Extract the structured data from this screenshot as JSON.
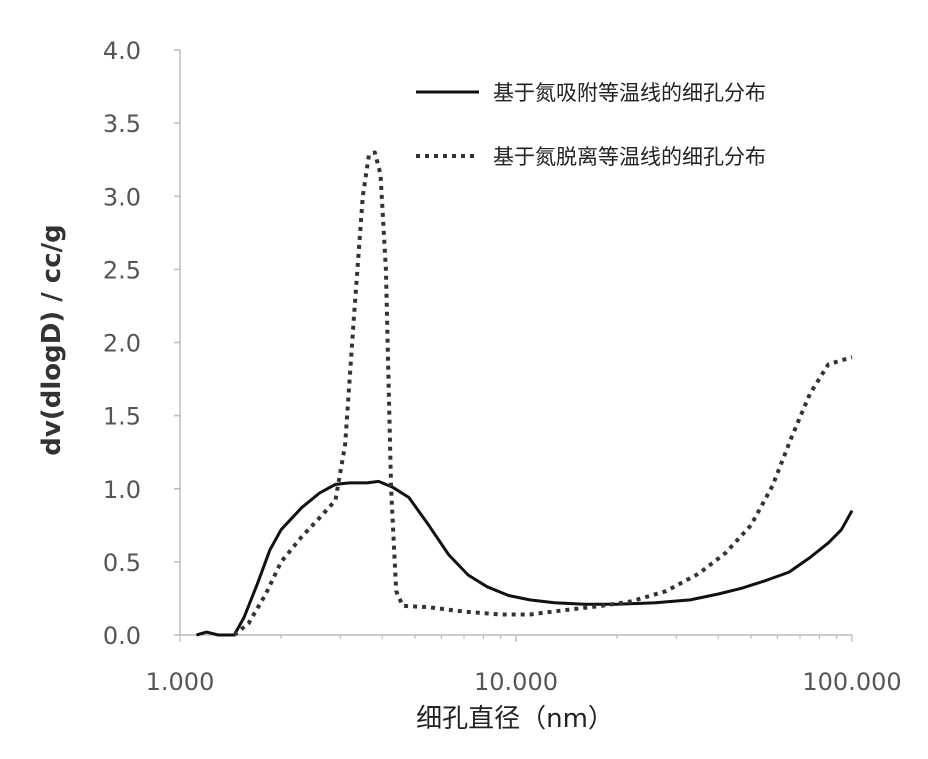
{
  "chart_data": {
    "type": "line",
    "xscale": "log",
    "xlim": [
      1,
      100
    ],
    "ylim": [
      0,
      4
    ],
    "xlabel": "细孔直径（nm）",
    "ylabel": "dv(dlogD) / cc/g",
    "xticks": [
      {
        "value": 1,
        "label": "1.000"
      },
      {
        "value": 10,
        "label": "10.000"
      },
      {
        "value": 100,
        "label": "100.000"
      }
    ],
    "yticks": [
      {
        "value": 0,
        "label": "0.0"
      },
      {
        "value": 0.5,
        "label": "0.5"
      },
      {
        "value": 1,
        "label": "1.0"
      },
      {
        "value": 1.5,
        "label": "1.5"
      },
      {
        "value": 2,
        "label": "2.0"
      },
      {
        "value": 2.5,
        "label": "2.5"
      },
      {
        "value": 3,
        "label": "3.0"
      },
      {
        "value": 3.5,
        "label": "3.5"
      },
      {
        "value": 4,
        "label": "4.0"
      }
    ],
    "legend_position": "top-right",
    "series": [
      {
        "name": "基于氮吸附等温线的细孔分布",
        "style": "solid",
        "color": "#111111",
        "points": [
          [
            1.12,
            0.0
          ],
          [
            1.2,
            0.02
          ],
          [
            1.3,
            0.0
          ],
          [
            1.45,
            0.0
          ],
          [
            1.55,
            0.12
          ],
          [
            1.7,
            0.35
          ],
          [
            1.85,
            0.58
          ],
          [
            2.0,
            0.72
          ],
          [
            2.3,
            0.87
          ],
          [
            2.6,
            0.97
          ],
          [
            2.9,
            1.03
          ],
          [
            3.2,
            1.04
          ],
          [
            3.6,
            1.04
          ],
          [
            3.9,
            1.05
          ],
          [
            4.3,
            1.01
          ],
          [
            4.8,
            0.94
          ],
          [
            5.5,
            0.75
          ],
          [
            6.3,
            0.55
          ],
          [
            7.2,
            0.41
          ],
          [
            8.2,
            0.33
          ],
          [
            9.5,
            0.27
          ],
          [
            11.0,
            0.24
          ],
          [
            13.0,
            0.22
          ],
          [
            16.0,
            0.21
          ],
          [
            20.0,
            0.21
          ],
          [
            26.0,
            0.22
          ],
          [
            33.0,
            0.24
          ],
          [
            40.0,
            0.28
          ],
          [
            47.0,
            0.32
          ],
          [
            55.0,
            0.37
          ],
          [
            65.0,
            0.43
          ],
          [
            75.0,
            0.53
          ],
          [
            85.0,
            0.63
          ],
          [
            93.0,
            0.72
          ],
          [
            100.0,
            0.85
          ]
        ]
      },
      {
        "name": "基于氮脱离等温线的细孔分布",
        "style": "dotted",
        "color": "#333333",
        "points": [
          [
            1.45,
            0.0
          ],
          [
            1.6,
            0.08
          ],
          [
            1.8,
            0.28
          ],
          [
            2.0,
            0.5
          ],
          [
            2.3,
            0.67
          ],
          [
            2.6,
            0.8
          ],
          [
            2.9,
            0.92
          ],
          [
            3.1,
            1.3
          ],
          [
            3.3,
            2.2
          ],
          [
            3.5,
            3.0
          ],
          [
            3.65,
            3.28
          ],
          [
            3.8,
            3.3
          ],
          [
            3.95,
            3.15
          ],
          [
            4.1,
            2.5
          ],
          [
            4.25,
            1.0
          ],
          [
            4.4,
            0.3
          ],
          [
            4.6,
            0.2
          ],
          [
            5.5,
            0.19
          ],
          [
            7.0,
            0.16
          ],
          [
            9.0,
            0.14
          ],
          [
            11.0,
            0.14
          ],
          [
            14.0,
            0.17
          ],
          [
            18.0,
            0.2
          ],
          [
            22.0,
            0.23
          ],
          [
            28.0,
            0.3
          ],
          [
            35.0,
            0.42
          ],
          [
            42.0,
            0.56
          ],
          [
            50.0,
            0.75
          ],
          [
            58.0,
            1.02
          ],
          [
            66.0,
            1.35
          ],
          [
            75.0,
            1.65
          ],
          [
            85.0,
            1.85
          ],
          [
            100.0,
            1.9
          ]
        ]
      }
    ]
  }
}
